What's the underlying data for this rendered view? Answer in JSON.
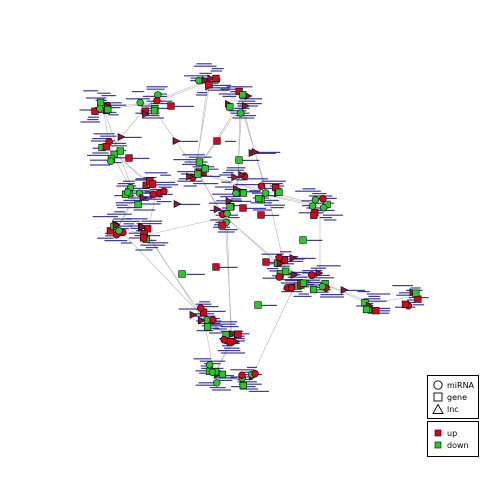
{
  "legend_shape": {
    "items": [
      {
        "icon": "circle-icon",
        "label": "miRNA"
      },
      {
        "icon": "square-icon",
        "label": "gene"
      },
      {
        "icon": "triangle-icon",
        "label": "lnc"
      }
    ]
  },
  "legend_color": {
    "items": [
      {
        "icon": "square-icon",
        "label": "up",
        "color": "#e0001b"
      },
      {
        "icon": "square-icon",
        "label": "down",
        "color": "#22cc22"
      }
    ]
  },
  "colors": {
    "up": "#e0001b",
    "down": "#22cc22",
    "lnc": "#8b1a3a",
    "edge": "#b4b4b4",
    "label": "#1a1a9a"
  }
}
